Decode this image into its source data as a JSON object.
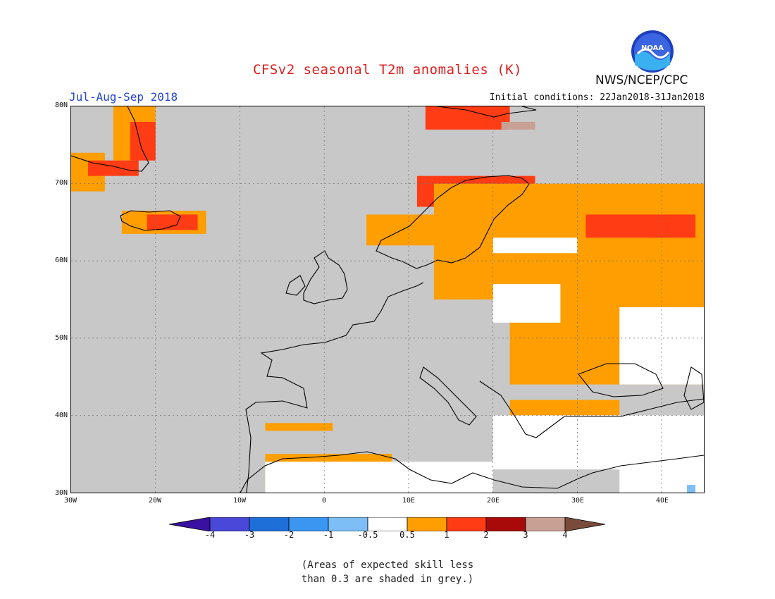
{
  "title": "CFSv2 seasonal T2m anomalies (K)",
  "organization": "NWS/NCEP/CPC",
  "logo_text": "NOAA",
  "period": "Jul-Aug-Sep 2018",
  "initial_conditions": "Initial conditions: 22Jan2018-31Jan2018",
  "lat_labels": [
    "80N",
    "70N",
    "60N",
    "50N",
    "40N",
    "30N"
  ],
  "lon_labels": [
    "30W",
    "20W",
    "10W",
    "0",
    "10E",
    "20E",
    "30E",
    "40E"
  ],
  "colorbar": {
    "labels": [
      "-4",
      "-3",
      "-2",
      "-1",
      "-0.5",
      "0.5",
      "1",
      "2",
      "3",
      "4"
    ],
    "colors": [
      "#3a10a0",
      "#4a48d8",
      "#1e6fd8",
      "#3a96f0",
      "#7cbef5",
      "#ffffff",
      "#ff9e00",
      "#ff3c14",
      "#a80a0a",
      "#c8a094",
      "#7a4a3a"
    ]
  },
  "note_line1": "(Areas of expected skill less",
  "note_line2": "than 0.3 are shaded in grey.)",
  "legend_colors": {
    "grey": "#c8c8c8",
    "white": "#ffffff",
    "orange": "#ff9e00",
    "red": "#ff3c14",
    "darkred": "#a80a0a",
    "tan": "#c8a094",
    "lightblue": "#7cbef5"
  },
  "map_bounds": {
    "lon": [
      -30,
      45
    ],
    "lat": [
      30,
      80
    ]
  },
  "anomaly_regions": [
    {
      "category": "orange",
      "lon": [
        -25,
        -20
      ],
      "lat": [
        73,
        80
      ]
    },
    {
      "category": "red",
      "lon": [
        -23,
        -20
      ],
      "lat": [
        73,
        78
      ]
    },
    {
      "category": "orange",
      "lon": [
        -30,
        -26
      ],
      "lat": [
        69,
        74
      ]
    },
    {
      "category": "red",
      "lon": [
        -28,
        -22
      ],
      "lat": [
        71,
        73
      ]
    },
    {
      "category": "orange",
      "lon": [
        -24,
        -14
      ],
      "lat": [
        63.5,
        66.5
      ]
    },
    {
      "category": "red",
      "lon": [
        -21,
        -15
      ],
      "lat": [
        64,
        66
      ]
    },
    {
      "category": "red",
      "lon": [
        12,
        22
      ],
      "lat": [
        77,
        80
      ]
    },
    {
      "category": "tan",
      "lon": [
        21,
        25
      ],
      "lat": [
        77,
        78
      ]
    },
    {
      "category": "orange",
      "lon": [
        5,
        15
      ],
      "lat": [
        62,
        66
      ]
    },
    {
      "category": "red",
      "lon": [
        11,
        25
      ],
      "lat": [
        67,
        71
      ]
    },
    {
      "category": "orange",
      "lon": [
        13,
        45
      ],
      "lat": [
        55,
        70
      ]
    },
    {
      "category": "orange",
      "lon": [
        22,
        45
      ],
      "lat": [
        44,
        58
      ]
    },
    {
      "category": "white",
      "lon": [
        35,
        45
      ],
      "lat": [
        44,
        54
      ]
    },
    {
      "category": "red",
      "lon": [
        31,
        44
      ],
      "lat": [
        63,
        66
      ]
    },
    {
      "category": "white",
      "lon": [
        20,
        30
      ],
      "lat": [
        61,
        63
      ]
    },
    {
      "category": "white",
      "lon": [
        20,
        28
      ],
      "lat": [
        52,
        57
      ]
    },
    {
      "category": "orange",
      "lon": [
        22,
        35
      ],
      "lat": [
        40,
        42
      ]
    },
    {
      "category": "white",
      "lon": [
        20,
        45
      ],
      "lat": [
        33,
        40
      ]
    },
    {
      "category": "orange",
      "lon": [
        -7,
        8
      ],
      "lat": [
        30,
        35
      ]
    },
    {
      "category": "white",
      "lon": [
        -7,
        20
      ],
      "lat": [
        30,
        34
      ]
    },
    {
      "category": "orange",
      "lon": [
        -7,
        1
      ],
      "lat": [
        38,
        39
      ]
    },
    {
      "category": "white",
      "lon": [
        35,
        45
      ],
      "lat": [
        30,
        34
      ]
    },
    {
      "category": "lightblue",
      "lon": [
        43,
        44
      ],
      "lat": [
        30,
        31
      ]
    }
  ]
}
